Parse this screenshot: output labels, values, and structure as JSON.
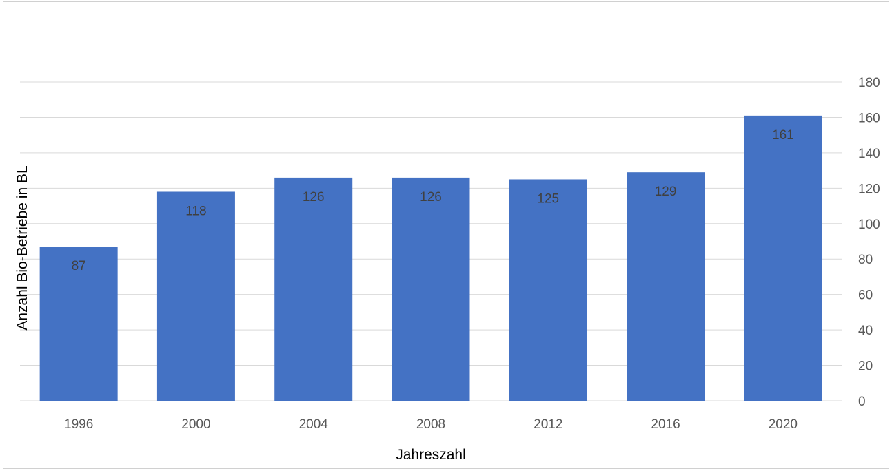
{
  "chart_data": {
    "type": "bar",
    "categories": [
      "1996",
      "2000",
      "2004",
      "2008",
      "2012",
      "2016",
      "2020"
    ],
    "values": [
      87,
      118,
      126,
      126,
      125,
      129,
      161
    ],
    "title": "",
    "xlabel": "Jahreszahl",
    "ylabel": "Anzahl Bio-Betriebe in BL",
    "ylim": [
      0,
      180
    ],
    "yticks": [
      0,
      20,
      40,
      60,
      80,
      100,
      120,
      140,
      160,
      180
    ],
    "y_axis_side": "right",
    "grid": true,
    "legend": "none",
    "data_labels": true,
    "colors": {
      "bar": "#4472C4",
      "grid": "#D9D9D9",
      "tick_text": "#595959",
      "data_label_text": "#404040"
    }
  }
}
